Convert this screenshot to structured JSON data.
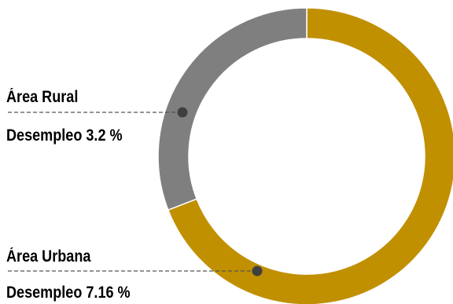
{
  "chart_data": {
    "type": "pie",
    "style": "donut",
    "categories": [
      "Área Urbana",
      "Área Rural"
    ],
    "values": [
      7.16,
      3.2
    ],
    "colors": [
      "#C09000",
      "#7F7F7F"
    ],
    "start": "12 o'clock",
    "direction": "clockwise",
    "labels": [
      {
        "name": "Área Rural",
        "text": "Desempleo 3.2 %"
      },
      {
        "name": "Área Urbana",
        "text": "Desempleo 7.16 %"
      }
    ]
  }
}
